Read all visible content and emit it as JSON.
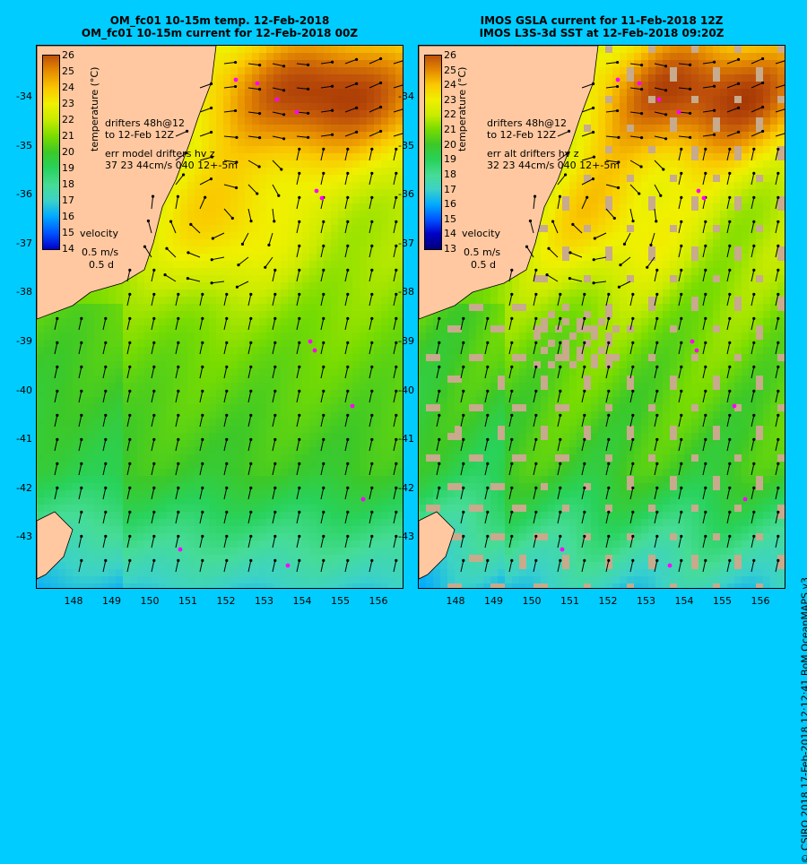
{
  "left_panel": {
    "title_line1": "OM_fc01 10-15m temp. 12-Feb-2018",
    "title_line2": "OM_fc01 10-15m current for 12-Feb-2018 00Z",
    "colorbar_ticks": [
      "26",
      "25",
      "24",
      "23",
      "22",
      "21",
      "20",
      "19",
      "18",
      "17",
      "16",
      "15",
      "14"
    ],
    "colorbar_label": "temperature (°C)",
    "drifters_label": "drifters 48h@12",
    "drifters_label2": "to 12-Feb 12Z",
    "err_line1": "err model drifters hv z",
    "err_line2": "37 23 44cm/s 040 12+-5m",
    "velocity_label": "velocity",
    "velocity_scale": "0.5 m/s",
    "velocity_time": "0.5 d"
  },
  "right_panel": {
    "title_line1": "IMOS GSLA current for 11-Feb-2018 12Z",
    "title_line2": "IMOS L3S-3d SST at 12-Feb-2018 09:20Z",
    "colorbar_ticks": [
      "26",
      "25",
      "24",
      "23",
      "22",
      "21",
      "20",
      "19",
      "18",
      "17",
      "16",
      "15",
      "14",
      "13"
    ],
    "colorbar_label": "temperature (°C)",
    "drifters_label": "drifters 48h@12",
    "drifters_label2": "to 12-Feb 12Z",
    "err_line1": "err alt drifters hv z",
    "err_line2": "32 23 44cm/s 040 12+-5m",
    "velocity_label": "velocity",
    "velocity_scale": "0.5 m/s",
    "velocity_time": "0.5 d"
  },
  "lat_ticks": [
    "-34",
    "-35",
    "-36",
    "-37",
    "-38",
    "-39",
    "-40",
    "-41",
    "-42",
    "-43"
  ],
  "lon_ticks": [
    "148",
    "149",
    "150",
    "151",
    "152",
    "153",
    "154",
    "155",
    "156"
  ],
  "credit": "© CSIRO 2018   17-Feb-2018 12:12:41 BoM OceanMAPS v3",
  "colors": {
    "background": "#00ccff",
    "land": "#ffc8a0",
    "cloud": "#c8aa8c",
    "drifter": "#ff00ff"
  }
}
